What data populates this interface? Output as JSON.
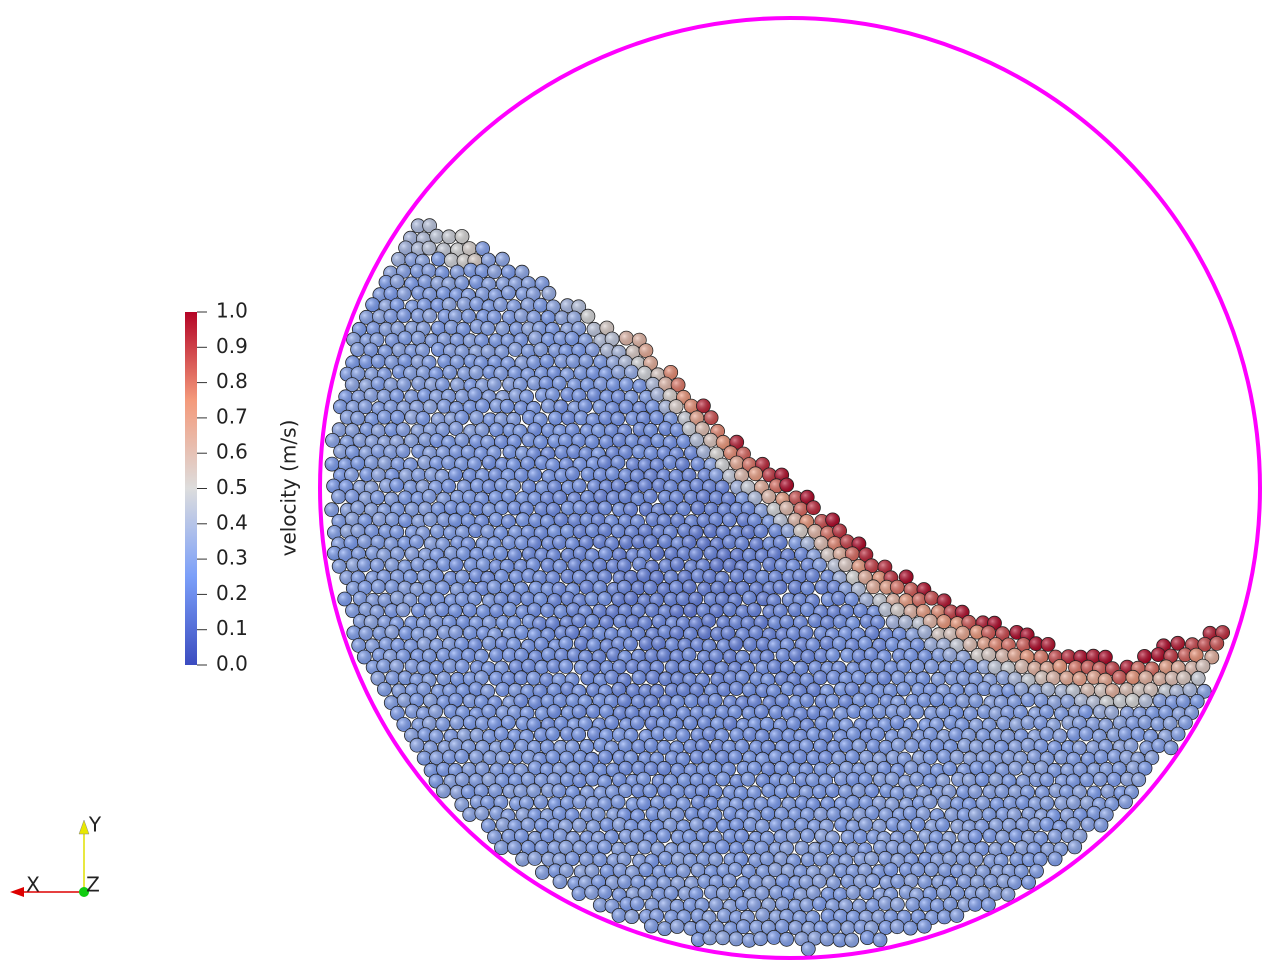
{
  "colorbar": {
    "title": "velocity  (m/s)",
    "ticks": [
      "1.0",
      "0.9",
      "0.8",
      "0.7",
      "0.6",
      "0.5",
      "0.4",
      "0.3",
      "0.2",
      "0.1",
      "0.0"
    ]
  },
  "axes": {
    "x": "X",
    "y": "Y",
    "z": "Z"
  }
}
